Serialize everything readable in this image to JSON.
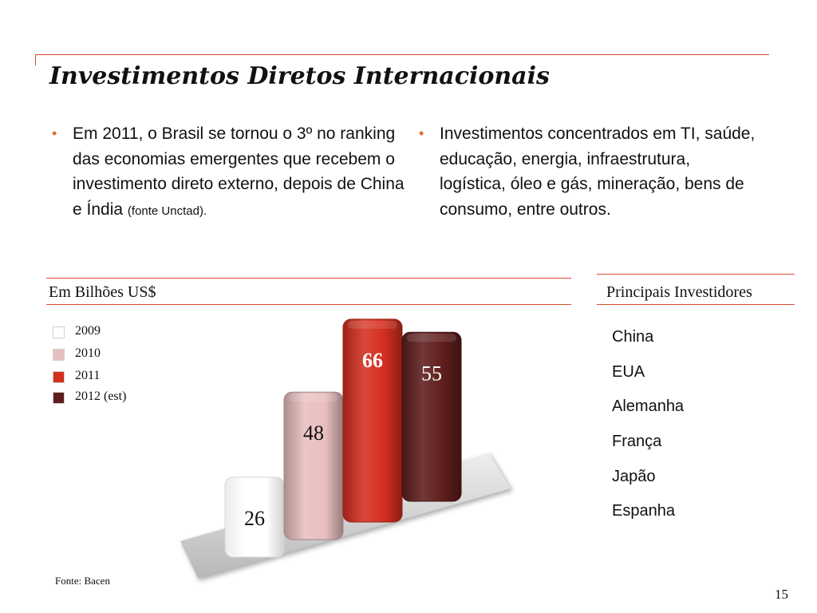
{
  "slide": {
    "title": "Investimentos Diretos Internacionais",
    "page_number": "15",
    "accent_color": "#d94a33"
  },
  "bullets": {
    "left": {
      "text": "Em 2011, o Brasil se tornou o 3º no ranking das economias emergentes que recebem  o investimento direto externo, depois de China e Índia",
      "note": "(fonte Unctad)."
    },
    "right": {
      "text": "Investimentos concentrados em TI, saúde, educação, energia, infraestrutura, logística, óleo e gás, mineração, bens de consumo, entre outros."
    }
  },
  "chart_section": {
    "label": "Em Bilhões US$",
    "source": "Fonte: Bacen"
  },
  "investors_section": {
    "label": "Principais Investidores",
    "items": [
      "China",
      "EUA",
      "Alemanha",
      "França",
      "Japão",
      "Espanha"
    ]
  },
  "chart_data": {
    "type": "bar",
    "title": "",
    "xlabel": "",
    "ylabel": "",
    "categories": [
      "2009",
      "2010",
      "2011",
      "2012 (est)"
    ],
    "values": [
      26,
      48,
      66,
      55
    ],
    "value_labels": [
      "26",
      "48",
      "66",
      "55"
    ],
    "colors": [
      "#ffffff",
      "#e8bfbf",
      "#d42e1f",
      "#5e1d1c"
    ],
    "legend_position": "top-left",
    "grid": false
  }
}
